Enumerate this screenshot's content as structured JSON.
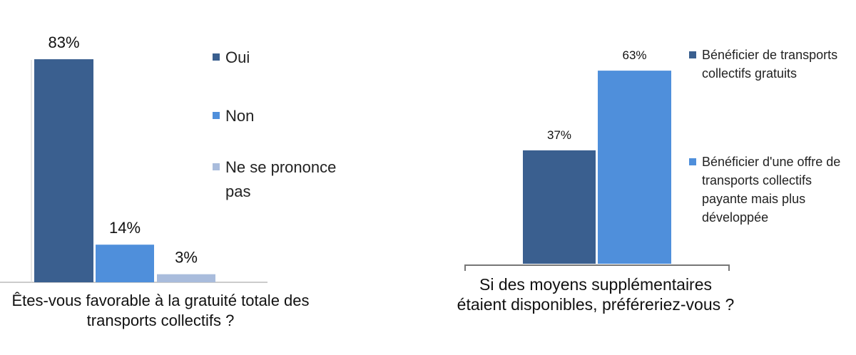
{
  "chart_data": [
    {
      "type": "bar",
      "categories": [
        "Êtes-vous favorable à la gratuité totale des transports collectifs ?"
      ],
      "series": [
        {
          "name": "Oui",
          "color": "#3a5f8f",
          "values": [
            83
          ],
          "value_labels": [
            "83%"
          ]
        },
        {
          "name": "Non",
          "color": "#4f8fdb",
          "values": [
            14
          ],
          "value_labels": [
            "14%"
          ]
        },
        {
          "name": "Ne se prononce pas",
          "color": "#a9bcdc",
          "values": [
            3
          ],
          "value_labels": [
            "3%"
          ]
        }
      ]
    },
    {
      "type": "bar",
      "categories": [
        "Si des moyens supplémentaires étaient disponibles, préféreriez-vous ?"
      ],
      "series": [
        {
          "name": "Bénéficier de transports collectifs gratuits",
          "color": "#3a5f8f",
          "values": [
            37
          ],
          "value_labels": [
            "37%"
          ]
        },
        {
          "name": "Bénéficier d'une offre de transports collectifs payante mais plus développée",
          "color": "#4f8fdb",
          "values": [
            63
          ],
          "value_labels": [
            "63%"
          ]
        }
      ]
    }
  ]
}
